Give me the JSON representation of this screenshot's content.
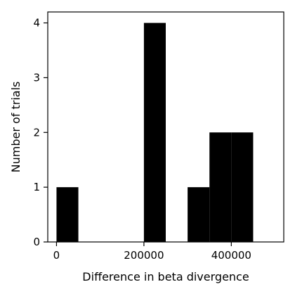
{
  "chart_data": {
    "type": "bar",
    "subtype": "histogram",
    "title": "",
    "xlabel": "Difference in beta divergence",
    "ylabel": "Number of trials",
    "bins": [
      {
        "x0": 0,
        "x1": 50000,
        "count": 1
      },
      {
        "x0": 50000,
        "x1": 100000,
        "count": 0
      },
      {
        "x0": 100000,
        "x1": 150000,
        "count": 0
      },
      {
        "x0": 150000,
        "x1": 200000,
        "count": 0
      },
      {
        "x0": 200000,
        "x1": 250000,
        "count": 4
      },
      {
        "x0": 250000,
        "x1": 300000,
        "count": 0
      },
      {
        "x0": 300000,
        "x1": 350000,
        "count": 1
      },
      {
        "x0": 350000,
        "x1": 400000,
        "count": 2
      },
      {
        "x0": 400000,
        "x1": 450000,
        "count": 2
      }
    ],
    "xlim": [
      -20000,
      520000
    ],
    "ylim": [
      0,
      4.2
    ],
    "xticks": [
      0,
      200000,
      400000
    ],
    "xtick_labels": [
      "0",
      "200000",
      "400000"
    ],
    "yticks": [
      0,
      1,
      2,
      3,
      4
    ],
    "ytick_labels": [
      "0",
      "1",
      "2",
      "3",
      "4"
    ],
    "bar_color": "#000000",
    "grid": false,
    "legend": "none"
  }
}
